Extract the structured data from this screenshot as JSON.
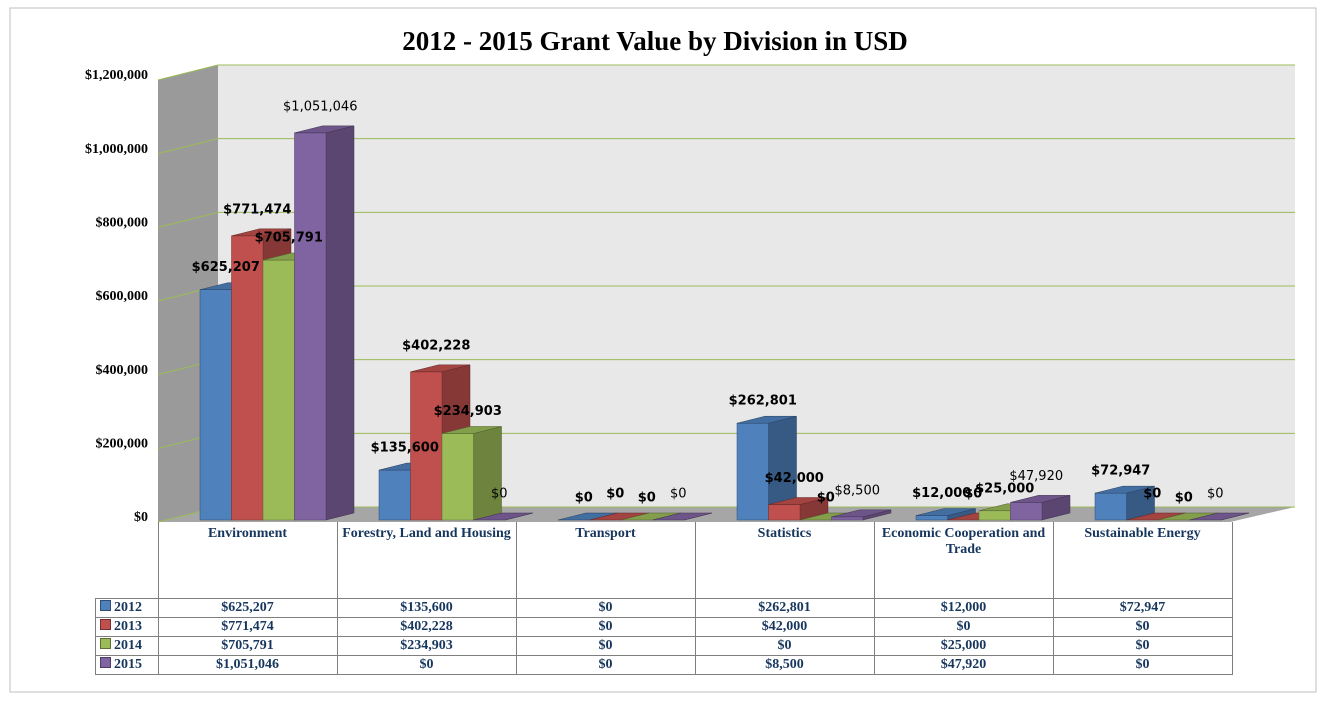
{
  "chart_data": {
    "type": "bar3d",
    "title": "2012 - 2015 Grant Value by Division in USD",
    "categories": [
      "Environment",
      "Forestry, Land and Housing",
      "Transport",
      "Statistics",
      "Economic Cooperation and Trade",
      "Sustainable Energy"
    ],
    "series": [
      {
        "name": "2012",
        "color": "#4f81bd",
        "values": [
          625207,
          135600,
          0,
          262801,
          12000,
          72947
        ],
        "value_labels": [
          "$625,207",
          "$135,600",
          "$0",
          "$262,801",
          "$12,000",
          "$72,947"
        ]
      },
      {
        "name": "2013",
        "color": "#c0504d",
        "values": [
          771474,
          402228,
          0,
          42000,
          0,
          0
        ],
        "value_labels": [
          "$771,474",
          "$402,228",
          "$0",
          "$42,000",
          "$0",
          "$0"
        ]
      },
      {
        "name": "2014",
        "color": "#9bbb59",
        "values": [
          705791,
          234903,
          0,
          0,
          25000,
          0
        ],
        "value_labels": [
          "$705,791",
          "$234,903",
          "$0",
          "$0",
          "$25,000",
          "$0"
        ]
      },
      {
        "name": "2015",
        "color": "#8064a2",
        "values": [
          1051046,
          0,
          0,
          8500,
          47920,
          0
        ],
        "value_labels": [
          "$1,051,046",
          "$0",
          "$0",
          "$8,500",
          "$47,920",
          "$0"
        ]
      }
    ],
    "ylim": [
      0,
      1200000
    ],
    "yticks": [
      {
        "value": 0,
        "label": "$0"
      },
      {
        "value": 200000,
        "label": "$200,000"
      },
      {
        "value": 400000,
        "label": "$400,000"
      },
      {
        "value": 600000,
        "label": "$600,000"
      },
      {
        "value": 800000,
        "label": "$800,000"
      },
      {
        "value": 1000000,
        "label": "$1,000,000"
      },
      {
        "value": 1200000,
        "label": "$1,200,000"
      }
    ],
    "grid": true,
    "grid_color": "#9bbb59",
    "data_table": true
  }
}
